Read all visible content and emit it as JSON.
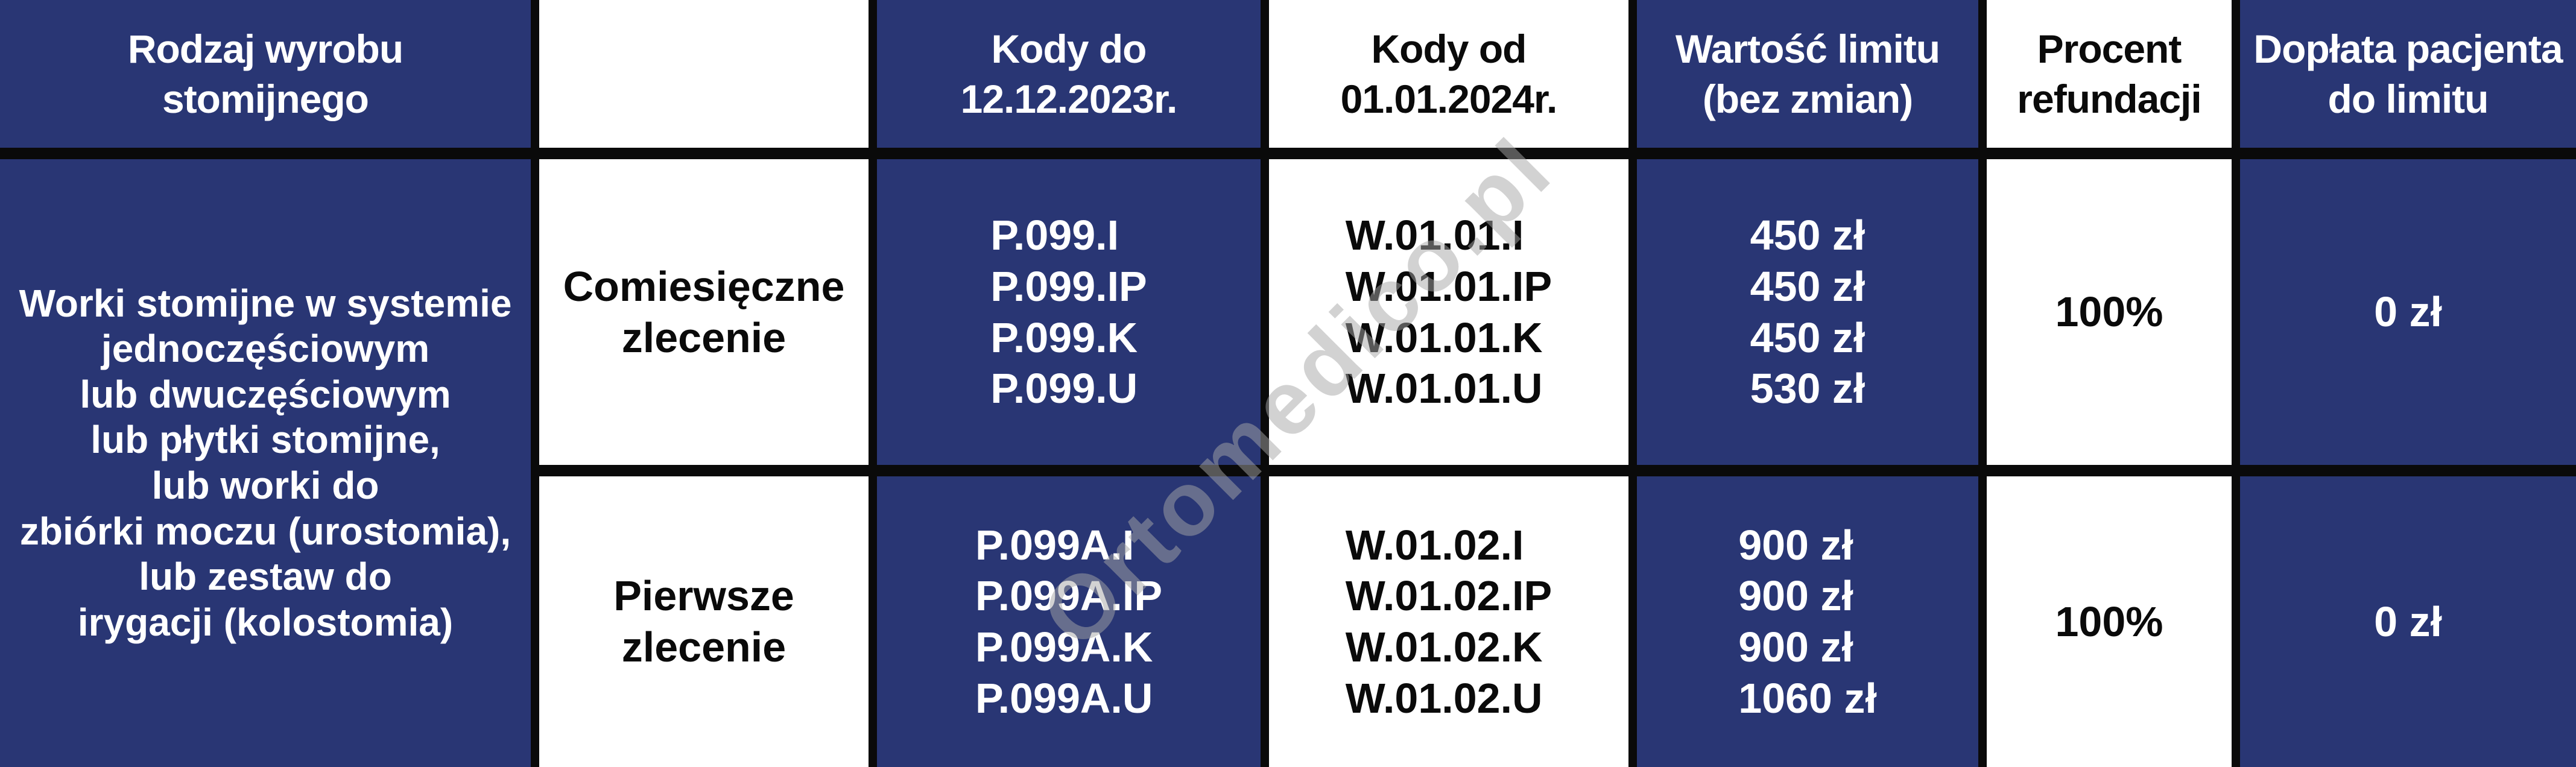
{
  "table": {
    "header": [
      {
        "lines": [
          "Rodzaj wyrobu",
          "stomijnego"
        ]
      },
      {
        "lines": [
          ""
        ]
      },
      {
        "lines": [
          "Kody do",
          "12.12.2023r."
        ]
      },
      {
        "lines": [
          "Kody od",
          "01.01.2024r."
        ]
      },
      {
        "lines": [
          "Wartość limitu",
          "(bez zmian)"
        ]
      },
      {
        "lines": [
          "Procent",
          "refundacji"
        ]
      },
      {
        "lines": [
          "Dopłata pacjenta",
          "do limitu"
        ]
      }
    ],
    "product_group_lines": [
      "Worki stomijne w systemie",
      "jednoczęściowym",
      "lub dwuczęściowym",
      "lub płytki stomijne,",
      "lub worki do",
      "zbiórki moczu (urostomia),",
      "lub zestaw do",
      "irygacji (kolostomia)"
    ],
    "rows": [
      {
        "order_type_lines": [
          "Comiesięczne",
          "zlecenie"
        ],
        "codes_old": [
          "P.099.I",
          "P.099.IP",
          "P.099.K",
          "P.099.U"
        ],
        "codes_new": [
          "W.01.01.I",
          "W.01.01.IP",
          "W.01.01.K",
          "W.01.01.U"
        ],
        "limit_values": [
          "450 zł",
          "450 zł",
          "450 zł",
          "530 zł"
        ],
        "refund_percent": "100%",
        "patient_copay": "0 zł"
      },
      {
        "order_type_lines": [
          "Pierwsze",
          "zlecenie"
        ],
        "codes_old": [
          "P.099A.I",
          "P.099A.IP",
          "P.099A.K",
          "P.099A.U"
        ],
        "codes_new": [
          "W.01.02.I",
          "W.01.02.IP",
          "W.01.02.K",
          "W.01.02.U"
        ],
        "limit_values": [
          "900 zł",
          "900 zł",
          "900 zł",
          "1060 zł"
        ],
        "refund_percent": "100%",
        "patient_copay": "0 zł"
      }
    ]
  },
  "watermark": {
    "text": "Ortomedico.pl"
  },
  "colors": {
    "primary_blue": "#293674",
    "text_on_blue": "#FFFFFF",
    "text_on_white": "#0A0A0A",
    "border_black": "#0A0A0A"
  }
}
